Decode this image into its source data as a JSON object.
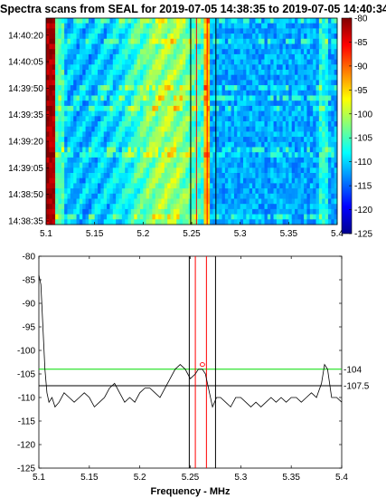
{
  "chart_data": [
    {
      "type": "heatmap",
      "title": "Spectra scans from SEAL for 2019-07-05 14:38:35 to 2019-07-05 14:40:34",
      "x_range": [
        5.1,
        5.4
      ],
      "x_ticks": [
        "5.1",
        "5.15",
        "5.2",
        "5.25",
        "5.3",
        "5.35",
        "5.4"
      ],
      "y_range": [
        "14:38:35",
        "14:40:34"
      ],
      "y_ticks": [
        "14:38:35",
        "14:38:50",
        "14:39:05",
        "14:39:20",
        "14:39:35",
        "14:39:50",
        "14:40:05",
        "14:40:20"
      ],
      "color_range": [
        -125,
        -80
      ],
      "colorbar_ticks": [
        "-80",
        "-85",
        "-90",
        "-95",
        "-100",
        "-105",
        "-110",
        "-115",
        "-120",
        "-125"
      ],
      "colormap": [
        "#00008f",
        "#0000ff",
        "#0080ff",
        "#00ffff",
        "#80ff80",
        "#ffff00",
        "#ff8000",
        "#ff0000",
        "#800000"
      ],
      "markers": [
        {
          "x": 5.249,
          "color": "#000000"
        },
        {
          "x": 5.255,
          "color": "#ff0000"
        },
        {
          "x": 5.266,
          "color": "#ff0000"
        },
        {
          "x": 5.275,
          "color": "#000000"
        }
      ]
    },
    {
      "type": "line",
      "xlabel": "Frequency - MHz",
      "xlim": [
        5.1,
        5.4
      ],
      "ylim": [
        -125,
        -80
      ],
      "x_ticks": [
        "5.1",
        "5.15",
        "5.2",
        "5.25",
        "5.3",
        "5.35",
        "5.4"
      ],
      "y_ticks": [
        "-80",
        "-85",
        "-90",
        "-95",
        "-100",
        "-105",
        "-110",
        "-115",
        "-120",
        "-125"
      ],
      "grid": false,
      "series": [
        {
          "color": "#000000",
          "x": [
            5.1,
            5.102,
            5.104,
            5.106,
            5.108,
            5.11,
            5.113,
            5.116,
            5.12,
            5.125,
            5.13,
            5.135,
            5.14,
            5.145,
            5.15,
            5.155,
            5.16,
            5.165,
            5.17,
            5.175,
            5.18,
            5.185,
            5.19,
            5.195,
            5.2,
            5.205,
            5.21,
            5.215,
            5.22,
            5.225,
            5.23,
            5.235,
            5.24,
            5.245,
            5.25,
            5.255,
            5.258,
            5.262,
            5.265,
            5.268,
            5.272,
            5.276,
            5.28,
            5.285,
            5.29,
            5.295,
            5.3,
            5.305,
            5.31,
            5.315,
            5.32,
            5.325,
            5.33,
            5.335,
            5.34,
            5.345,
            5.35,
            5.355,
            5.36,
            5.365,
            5.37,
            5.375,
            5.38,
            5.383,
            5.386,
            5.39,
            5.395,
            5.4
          ],
          "values": [
            -84,
            -86,
            -95,
            -104,
            -109,
            -111,
            -110,
            -112,
            -111,
            -109,
            -110,
            -111,
            -110,
            -109,
            -110,
            -112,
            -111,
            -110,
            -108,
            -107,
            -109,
            -111,
            -110,
            -111,
            -109,
            -108,
            -108,
            -109,
            -110,
            -108,
            -106,
            -104,
            -103,
            -104,
            -106,
            -105,
            -104,
            -104,
            -105,
            -108,
            -112,
            -110,
            -110,
            -111,
            -112,
            -110,
            -110,
            -111,
            -112,
            -111,
            -112,
            -111,
            -110,
            -111,
            -110,
            -111,
            -110,
            -110,
            -111,
            -110,
            -109,
            -110,
            -107,
            -103,
            -104,
            -110,
            -110,
            -111
          ]
        }
      ],
      "hlines": [
        {
          "y": -104,
          "color": "#00dd00",
          "label": "-104"
        },
        {
          "y": -107.5,
          "color": "#000000",
          "label": "-107.5"
        }
      ],
      "vlines": [
        {
          "x": 5.249,
          "color": "#000000"
        },
        {
          "x": 5.255,
          "color": "#ff0000"
        },
        {
          "x": 5.266,
          "color": "#ff0000"
        },
        {
          "x": 5.275,
          "color": "#000000"
        }
      ],
      "peak_marker": {
        "x": 5.262,
        "y": -103,
        "color": "#ff0000"
      }
    }
  ]
}
